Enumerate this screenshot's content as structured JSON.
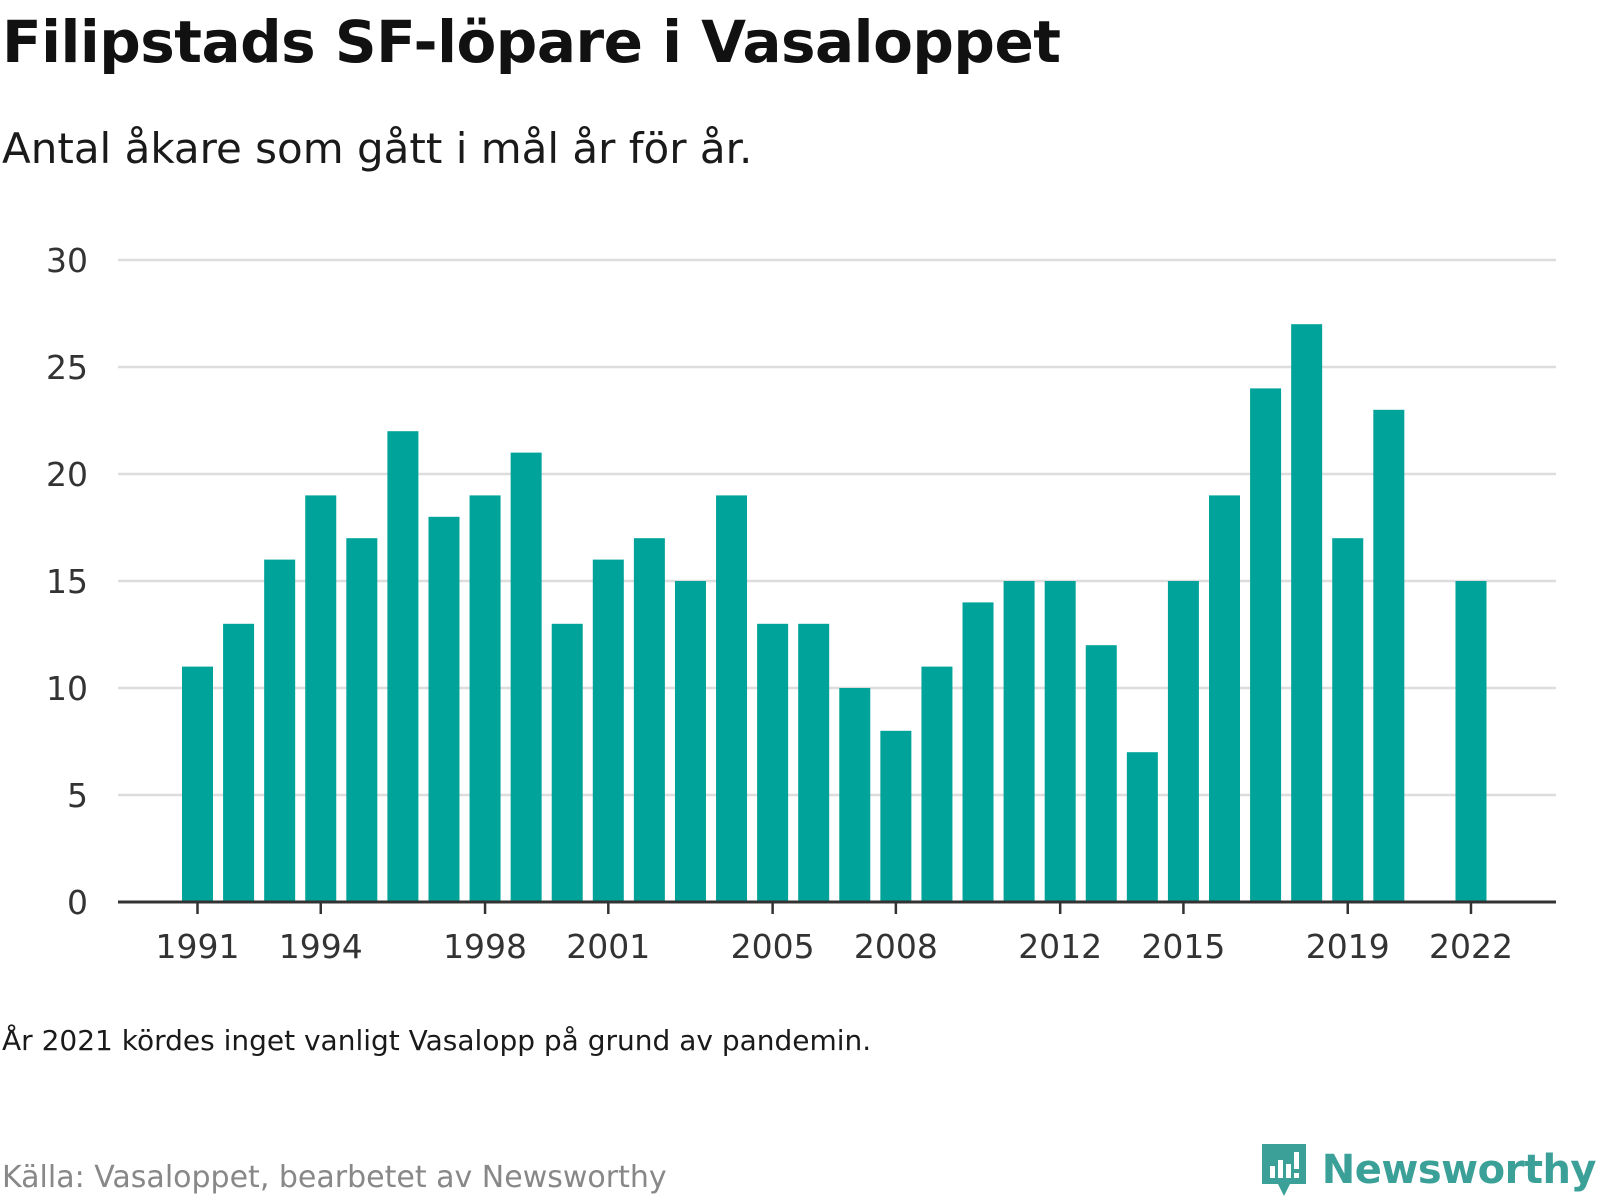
{
  "title": "Filipstads SF-löpare i Vasaloppet",
  "subtitle": "Antal åkare som gått i mål år för år.",
  "note": "År 2021 kördes inget vanligt Vasalopp på grund av pandemin.",
  "source": "Källa: Vasaloppet, bearbetet av Newsworthy",
  "brand": {
    "name": "Newsworthy",
    "icon": "newsworthy-logo-icon"
  },
  "colors": {
    "bar": "#00a39a",
    "grid": "#dddddd",
    "axis": "#333333",
    "brand": "#3aa098"
  },
  "chart_data": {
    "type": "bar",
    "title": "Filipstads SF-löpare i Vasaloppet",
    "subtitle": "Antal åkare som gått i mål år för år.",
    "xlabel": "",
    "ylabel": "",
    "categories": [
      1991,
      1992,
      1993,
      1994,
      1995,
      1996,
      1997,
      1998,
      1999,
      2000,
      2001,
      2002,
      2003,
      2004,
      2005,
      2006,
      2007,
      2008,
      2009,
      2010,
      2011,
      2012,
      2013,
      2014,
      2015,
      2016,
      2017,
      2018,
      2019,
      2020,
      2021,
      2022
    ],
    "values": [
      11,
      13,
      16,
      19,
      17,
      22,
      18,
      19,
      21,
      13,
      16,
      17,
      15,
      19,
      13,
      13,
      10,
      8,
      11,
      14,
      15,
      15,
      12,
      7,
      15,
      19,
      24,
      27,
      17,
      23,
      null,
      15
    ],
    "x_tick_labels": [
      "1991",
      "1994",
      "1998",
      "2001",
      "2005",
      "2008",
      "2012",
      "2015",
      "2019",
      "2022"
    ],
    "y_ticks": [
      0,
      5,
      10,
      15,
      20,
      25,
      30
    ],
    "ylim": [
      0,
      30
    ],
    "grid": true,
    "legend": "none"
  }
}
